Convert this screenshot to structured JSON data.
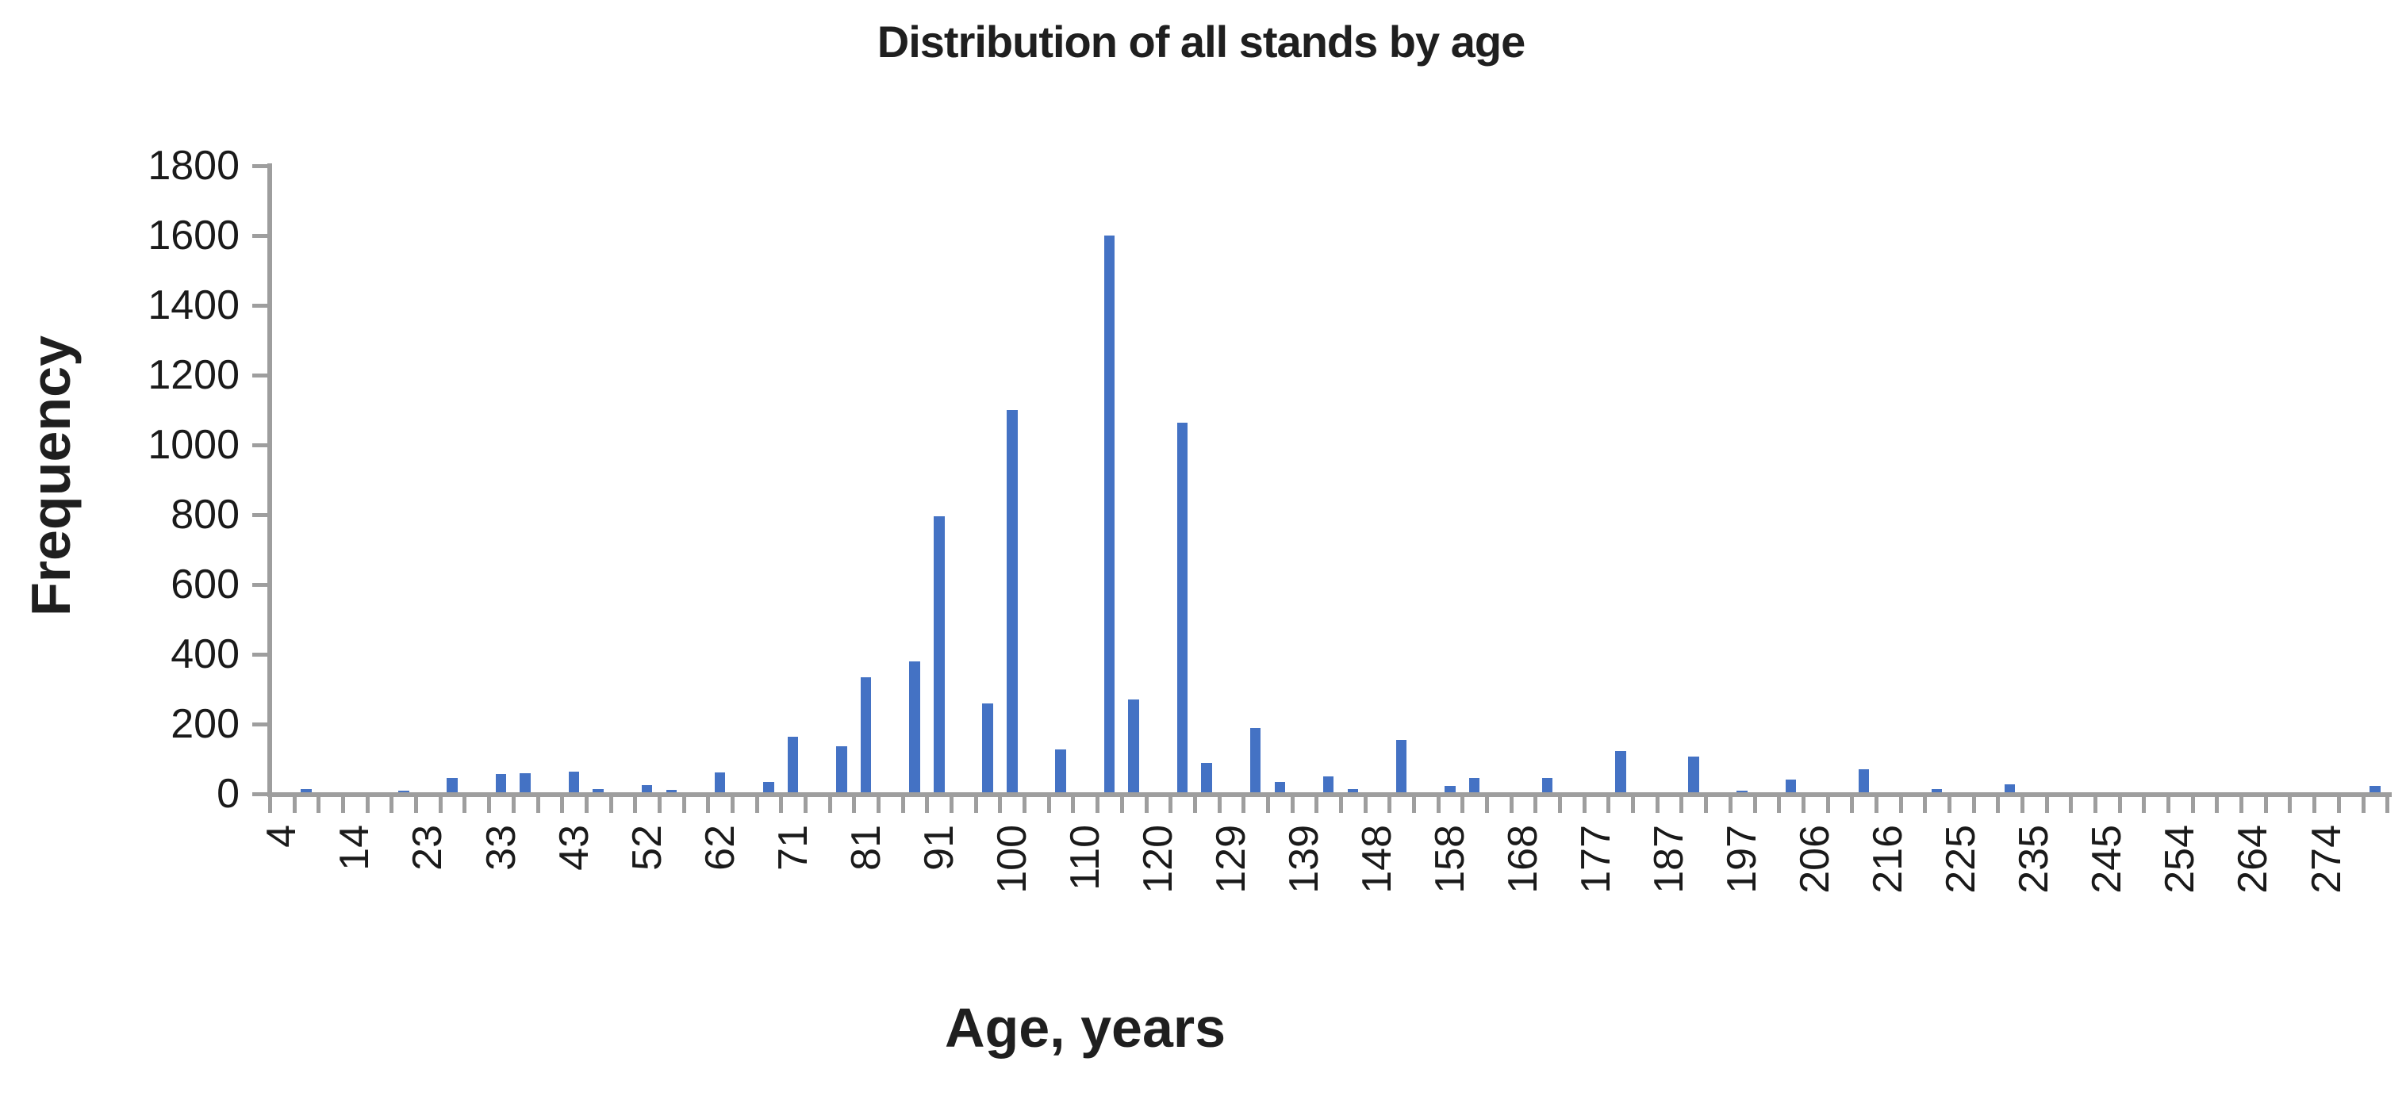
{
  "title": "Distribution of all stands by age",
  "y_axis": {
    "title": "Frequency",
    "tick_labels": [
      "0",
      "200",
      "400",
      "600",
      "800",
      "1000",
      "1200",
      "1400",
      "1600",
      "1800"
    ]
  },
  "x_axis": {
    "title": "Age, years",
    "tick_labels": [
      "4",
      "14",
      "23",
      "33",
      "43",
      "52",
      "62",
      "71",
      "81",
      "91",
      "100",
      "110",
      "120",
      "129",
      "139",
      "148",
      "158",
      "168",
      "177",
      "187",
      "197",
      "206",
      "216",
      "225",
      "235",
      "245",
      "254",
      "264",
      "274"
    ]
  },
  "colors": {
    "bar": "#4472C4",
    "axis": "#9e9e9e",
    "text": "#1a1a1a"
  },
  "chart_data": {
    "type": "bar",
    "title": "Distribution of all stands by age",
    "xlabel": "Age, years",
    "ylabel": "Frequency",
    "ylim": [
      0,
      1800
    ],
    "y_tick_step": 200,
    "grid": false,
    "legend": false,
    "n_bins": 87,
    "x_label_every_n_bins": 3,
    "x_tick_labels": [
      "4",
      "14",
      "23",
      "33",
      "43",
      "52",
      "62",
      "71",
      "81",
      "91",
      "100",
      "110",
      "120",
      "129",
      "139",
      "148",
      "158",
      "168",
      "177",
      "187",
      "197",
      "206",
      "216",
      "225",
      "235",
      "245",
      "254",
      "264",
      "274"
    ],
    "values": [
      0,
      9,
      0,
      0,
      0,
      4,
      0,
      40,
      0,
      52,
      55,
      0,
      60,
      10,
      0,
      21,
      8,
      0,
      56,
      0,
      29,
      160,
      0,
      131,
      330,
      0,
      375,
      790,
      0,
      255,
      1095,
      0,
      123,
      0,
      1596,
      265,
      0,
      1060,
      85,
      0,
      185,
      30,
      0,
      46,
      10,
      0,
      149,
      0,
      18,
      41,
      0,
      0,
      42,
      0,
      0,
      119,
      0,
      0,
      103,
      0,
      5,
      0,
      37,
      0,
      0,
      65,
      0,
      0,
      9,
      0,
      0,
      23,
      0,
      0,
      0,
      0,
      0,
      0,
      0,
      0,
      0,
      0,
      0,
      0,
      0,
      0,
      18
    ]
  }
}
